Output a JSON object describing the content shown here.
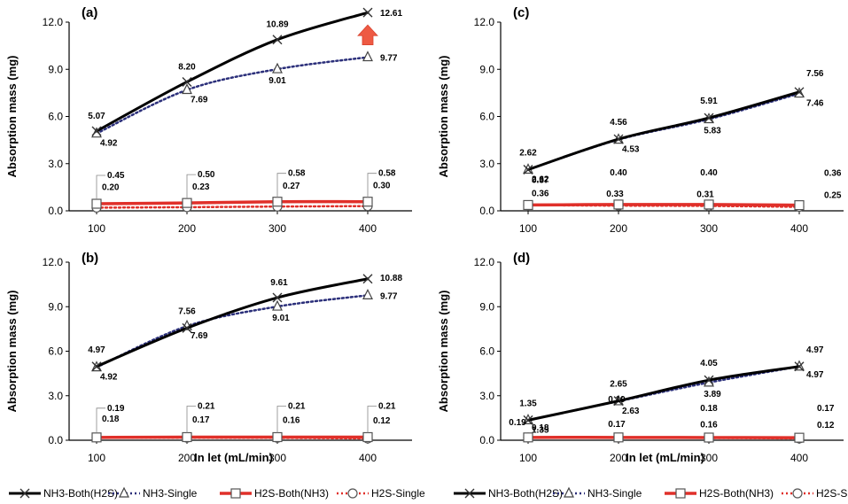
{
  "colors": {
    "nh3_both": "#000000",
    "nh3_single": "#2b2f7a",
    "h2s_both": "#e0302a",
    "h2s_single": "#e0302a",
    "arrow": "#ee5a43"
  },
  "legend": [
    {
      "key": "nh3_both",
      "label": "NH3-Both(H2S)"
    },
    {
      "key": "nh3_single",
      "label": "NH3-Single"
    },
    {
      "key": "h2s_both",
      "label": "H2S-Both(NH3)"
    },
    {
      "key": "h2s_single",
      "label": "H2S-Single"
    }
  ],
  "chart_data": [
    {
      "panel": "(a)",
      "type": "line",
      "x": [
        100,
        200,
        300,
        400
      ],
      "xtick_labels": [
        "100",
        "200",
        "300",
        "400"
      ],
      "ytick_labels": [
        "0.0",
        "3.0",
        "6.0",
        "9.0",
        "12.0"
      ],
      "ylim": [
        0,
        12
      ],
      "ylabel": "Absorption mass (mg)",
      "xlabel": "",
      "series": [
        {
          "name": "NH3-Both(H2S)",
          "values": [
            5.07,
            8.2,
            10.89,
            12.61
          ],
          "labels": [
            "5.07",
            "8.20",
            "10.89",
            "12.61"
          ]
        },
        {
          "name": "NH3-Single",
          "values": [
            4.92,
            7.69,
            9.01,
            9.77
          ],
          "labels": [
            "4.92",
            "7.69",
            "9.01",
            "9.77"
          ]
        },
        {
          "name": "H2S-Both(NH3)",
          "values": [
            0.45,
            0.5,
            0.58,
            0.58
          ],
          "labels": [
            "0.45",
            "0.50",
            "0.58",
            "0.58"
          ]
        },
        {
          "name": "H2S-Single",
          "values": [
            0.2,
            0.23,
            0.27,
            0.3
          ],
          "labels": [
            "0.20",
            "0.23",
            "0.27",
            "0.30"
          ]
        }
      ],
      "annotation": "up-arrow"
    },
    {
      "panel": "(b)",
      "type": "line",
      "x": [
        100,
        200,
        300,
        400
      ],
      "xtick_labels": [
        "100",
        "200",
        "300",
        "400"
      ],
      "ytick_labels": [
        "0.0",
        "3.0",
        "6.0",
        "9.0",
        "12.0"
      ],
      "ylim": [
        0,
        12
      ],
      "ylabel": "Absorption mass (mg)",
      "xlabel": "In let (mL/min)",
      "series": [
        {
          "name": "NH3-Both(H2S)",
          "values": [
            4.97,
            7.56,
            9.61,
            10.88
          ],
          "labels": [
            "4.97",
            "7.56",
            "9.61",
            "10.88"
          ]
        },
        {
          "name": "NH3-Single",
          "values": [
            4.92,
            7.69,
            9.01,
            9.77
          ],
          "labels": [
            "4.92",
            "7.69",
            "9.01",
            "9.77"
          ]
        },
        {
          "name": "H2S-Both(NH3)",
          "values": [
            0.19,
            0.21,
            0.21,
            0.21
          ],
          "labels": [
            "0.19",
            "0.21",
            "0.21",
            "0.21"
          ]
        },
        {
          "name": "H2S-Single",
          "values": [
            0.18,
            0.17,
            0.16,
            0.12
          ],
          "labels": [
            "0.18",
            "0.17",
            "0.16",
            "0.12"
          ]
        }
      ]
    },
    {
      "panel": "(c)",
      "type": "line",
      "x": [
        100,
        200,
        300,
        400
      ],
      "xtick_labels": [
        "100",
        "200",
        "300",
        "400"
      ],
      "ytick_labels": [
        "0.0",
        "3.0",
        "6.0",
        "9.0",
        "12.0"
      ],
      "ylim": [
        0,
        12
      ],
      "ylabel": "Absorption mass (mg)",
      "xlabel": "",
      "series": [
        {
          "name": "NH3-Both(H2S)",
          "values": [
            2.62,
            4.56,
            5.91,
            7.56
          ],
          "labels": [
            "2.62",
            "4.56",
            "5.91",
            "7.56"
          ]
        },
        {
          "name": "NH3-Single",
          "values": [
            2.62,
            4.53,
            5.83,
            7.46
          ],
          "labels": [
            "2.62",
            "4.53",
            "5.83",
            "7.46"
          ]
        },
        {
          "name": "H2S-Both(NH3)",
          "values": [
            0.37,
            0.4,
            0.4,
            0.36
          ],
          "labels": [
            "0.37",
            "0.40",
            "0.40",
            "0.36"
          ]
        },
        {
          "name": "H2S-Single",
          "values": [
            0.36,
            0.33,
            0.31,
            0.25
          ],
          "labels": [
            "0.36",
            "0.33",
            "0.31",
            "0.25"
          ]
        }
      ]
    },
    {
      "panel": "(d)",
      "type": "line",
      "x": [
        100,
        200,
        300,
        400
      ],
      "xtick_labels": [
        "100",
        "200",
        "300",
        "400"
      ],
      "ytick_labels": [
        "0.0",
        "3.0",
        "6.0",
        "9.0",
        "12.0"
      ],
      "ylim": [
        0,
        12
      ],
      "ylabel": "Absorption mass (mg)",
      "xlabel": "In let (mL/min)",
      "series": [
        {
          "name": "NH3-Both(H2S)",
          "values": [
            1.35,
            2.65,
            4.05,
            4.97
          ],
          "labels": [
            "1.35",
            "2.65",
            "4.05",
            "4.97"
          ]
        },
        {
          "name": "NH3-Single",
          "values": [
            1.35,
            2.63,
            3.89,
            4.97
          ],
          "labels": [
            "1.35",
            "2.63",
            "3.89",
            "4.97"
          ]
        },
        {
          "name": "H2S-Both(NH3)",
          "values": [
            0.19,
            0.19,
            0.18,
            0.17
          ],
          "labels": [
            "0.19",
            "0.19",
            "0.18",
            "0.17"
          ]
        },
        {
          "name": "H2S-Single",
          "values": [
            0.18,
            0.17,
            0.16,
            0.12
          ],
          "labels": [
            "0.18",
            "0.17",
            "0.16",
            "0.12"
          ]
        }
      ]
    }
  ]
}
